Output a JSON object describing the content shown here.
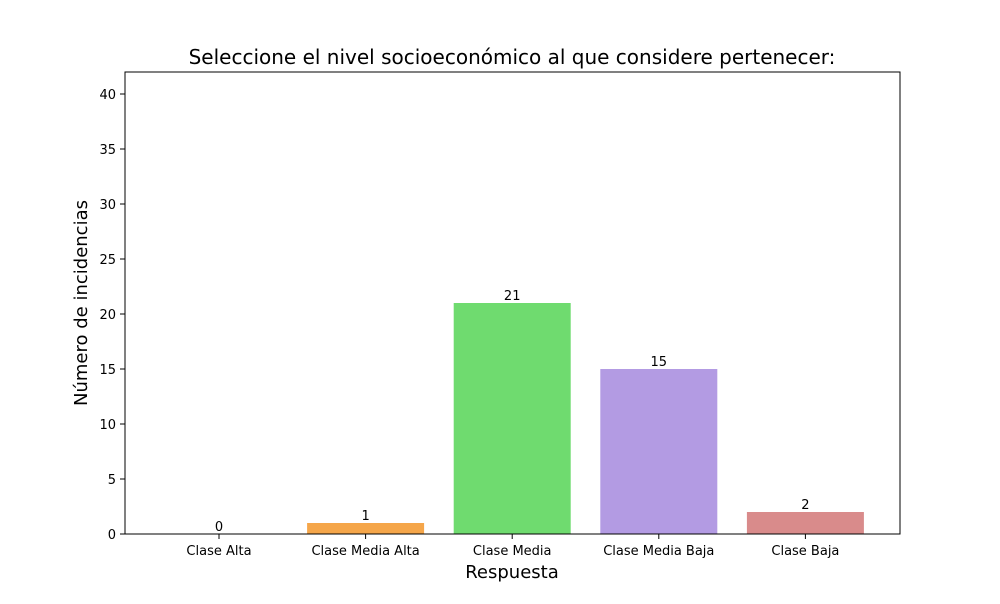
{
  "chart_data": {
    "type": "bar",
    "title": "Seleccione el nivel socioeconómico al que considere pertenecer:",
    "xlabel": "Respuesta",
    "ylabel": "Número de incidencias",
    "categories": [
      "Clase Alta",
      "Clase Media Alta",
      "Clase Media",
      "Clase Media Baja",
      "Clase Baja"
    ],
    "values": [
      0,
      1,
      21,
      15,
      2
    ],
    "colors": [
      "#5b9bd5",
      "#f5a64a",
      "#6fdb6f",
      "#b39be3",
      "#d98b8b"
    ],
    "ylim": [
      0,
      42
    ],
    "yticks": [
      0,
      5,
      10,
      15,
      20,
      25,
      30,
      35,
      40
    ],
    "grid": false,
    "legend": "none"
  }
}
